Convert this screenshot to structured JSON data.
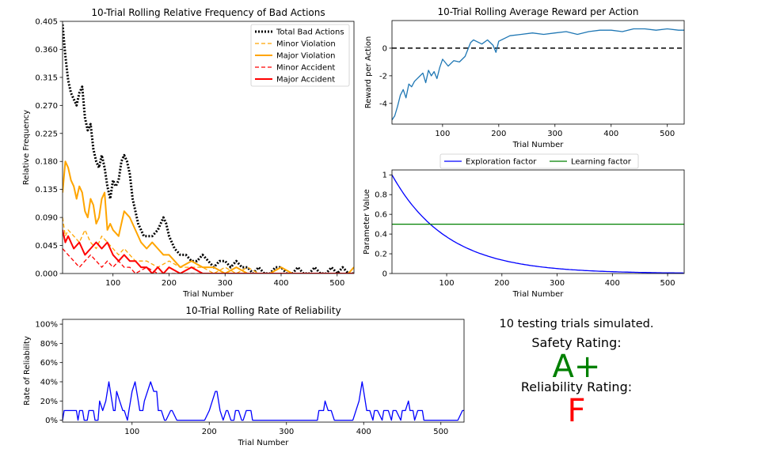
{
  "chart_data": [
    {
      "type": "line",
      "title": "10-Trial Rolling Relative Frequency of Bad Actions",
      "xlabel": "Trial Number",
      "ylabel": "Relative Frequency",
      "xlim": [
        10,
        530
      ],
      "ylim": [
        0,
        0.405
      ],
      "xticks": [
        100,
        200,
        300,
        400,
        500
      ],
      "yticks": [
        0.0,
        0.045,
        0.09,
        0.135,
        0.18,
        0.225,
        0.27,
        0.315,
        0.36,
        0.405
      ],
      "ytick_labels": [
        "0.000",
        "0.045",
        "0.090",
        "0.135",
        "0.180",
        "0.225",
        "0.270",
        "0.315",
        "0.360",
        "0.405"
      ],
      "legend_position": "upper right",
      "series": [
        {
          "name": "Total Bad Actions",
          "color": "#000000",
          "style": "dotted",
          "width": 3,
          "x": [
            10,
            15,
            20,
            25,
            30,
            35,
            40,
            45,
            50,
            55,
            60,
            65,
            70,
            75,
            80,
            85,
            90,
            95,
            100,
            105,
            110,
            115,
            120,
            125,
            130,
            135,
            140,
            145,
            150,
            155,
            160,
            170,
            180,
            190,
            195,
            200,
            210,
            220,
            230,
            240,
            250,
            260,
            270,
            280,
            290,
            300,
            310,
            320,
            330,
            340,
            350,
            360,
            370,
            380,
            390,
            400,
            410,
            420,
            430,
            440,
            450,
            460,
            470,
            480,
            490,
            500,
            510,
            520,
            530
          ],
          "y": [
            0.4,
            0.35,
            0.31,
            0.29,
            0.28,
            0.27,
            0.29,
            0.3,
            0.25,
            0.23,
            0.24,
            0.2,
            0.18,
            0.17,
            0.19,
            0.17,
            0.14,
            0.12,
            0.15,
            0.14,
            0.15,
            0.18,
            0.19,
            0.18,
            0.16,
            0.12,
            0.1,
            0.08,
            0.07,
            0.06,
            0.06,
            0.06,
            0.07,
            0.09,
            0.08,
            0.06,
            0.04,
            0.03,
            0.03,
            0.02,
            0.02,
            0.03,
            0.02,
            0.01,
            0.02,
            0.02,
            0.01,
            0.02,
            0.01,
            0.01,
            0.0,
            0.01,
            0.0,
            0.0,
            0.01,
            0.01,
            0.0,
            0.0,
            0.01,
            0.0,
            0.0,
            0.01,
            0.0,
            0.0,
            0.01,
            0.0,
            0.01,
            0.0,
            0.0
          ]
        },
        {
          "name": "Minor Violation",
          "color": "#ffa500",
          "style": "dashed",
          "width": 1.3,
          "x": [
            10,
            15,
            20,
            30,
            40,
            50,
            60,
            70,
            80,
            90,
            100,
            110,
            120,
            130,
            140,
            150,
            160,
            180,
            200,
            220,
            240,
            260,
            280,
            300,
            320,
            340,
            360,
            380,
            400,
            420,
            440,
            460,
            480,
            500,
            520,
            530
          ],
          "y": [
            0.09,
            0.06,
            0.07,
            0.06,
            0.05,
            0.07,
            0.05,
            0.04,
            0.06,
            0.05,
            0.04,
            0.03,
            0.04,
            0.03,
            0.02,
            0.02,
            0.02,
            0.01,
            0.02,
            0.01,
            0.01,
            0.01,
            0.0,
            0.01,
            0.0,
            0.01,
            0.0,
            0.0,
            0.01,
            0.0,
            0.0,
            0.0,
            0.0,
            0.0,
            0.0,
            0.0
          ]
        },
        {
          "name": "Major Violation",
          "color": "#ffa500",
          "style": "solid",
          "width": 2,
          "x": [
            10,
            15,
            20,
            25,
            30,
            35,
            40,
            45,
            50,
            55,
            60,
            65,
            70,
            75,
            80,
            85,
            90,
            95,
            100,
            110,
            120,
            130,
            140,
            150,
            160,
            170,
            180,
            190,
            200,
            210,
            220,
            240,
            260,
            280,
            300,
            320,
            340,
            360,
            380,
            400,
            420,
            440,
            460,
            480,
            500,
            520,
            530
          ],
          "y": [
            0.13,
            0.18,
            0.17,
            0.15,
            0.14,
            0.12,
            0.14,
            0.13,
            0.1,
            0.09,
            0.12,
            0.11,
            0.08,
            0.09,
            0.12,
            0.13,
            0.07,
            0.08,
            0.07,
            0.06,
            0.1,
            0.09,
            0.07,
            0.05,
            0.04,
            0.05,
            0.04,
            0.03,
            0.03,
            0.02,
            0.01,
            0.02,
            0.01,
            0.01,
            0.0,
            0.01,
            0.0,
            0.0,
            0.0,
            0.01,
            0.0,
            0.0,
            0.0,
            0.0,
            0.0,
            0.0,
            0.01
          ]
        },
        {
          "name": "Minor Accident",
          "color": "#ff0000",
          "style": "dashed",
          "width": 1.3,
          "x": [
            10,
            20,
            30,
            40,
            50,
            60,
            70,
            80,
            90,
            100,
            110,
            120,
            130,
            140,
            160,
            180,
            200,
            240,
            280,
            320,
            360,
            400,
            440,
            480,
            530
          ],
          "y": [
            0.04,
            0.03,
            0.02,
            0.01,
            0.02,
            0.03,
            0.02,
            0.01,
            0.02,
            0.01,
            0.02,
            0.01,
            0.01,
            0.0,
            0.01,
            0.0,
            0.0,
            0.0,
            0.0,
            0.0,
            0.0,
            0.0,
            0.0,
            0.0,
            0.0
          ]
        },
        {
          "name": "Major Accident",
          "color": "#ff0000",
          "style": "solid",
          "width": 2,
          "x": [
            10,
            15,
            20,
            25,
            30,
            40,
            50,
            60,
            70,
            80,
            90,
            100,
            110,
            120,
            130,
            140,
            150,
            160,
            170,
            180,
            190,
            200,
            220,
            240,
            260,
            280,
            300,
            340,
            380,
            420,
            460,
            500,
            530
          ],
          "y": [
            0.07,
            0.05,
            0.06,
            0.05,
            0.04,
            0.05,
            0.03,
            0.04,
            0.05,
            0.04,
            0.05,
            0.03,
            0.02,
            0.03,
            0.02,
            0.02,
            0.01,
            0.01,
            0.0,
            0.01,
            0.0,
            0.01,
            0.0,
            0.01,
            0.0,
            0.0,
            0.0,
            0.0,
            0.0,
            0.0,
            0.0,
            0.0,
            0.0
          ]
        }
      ]
    },
    {
      "type": "line",
      "title": "10-Trial Rolling Average Reward per Action",
      "xlabel": "Trial Number",
      "ylabel": "Reward per Action",
      "xlim": [
        10,
        530
      ],
      "ylim": [
        -5.5,
        2
      ],
      "xticks": [
        100,
        200,
        300,
        400,
        500
      ],
      "yticks": [
        -4,
        -2,
        0
      ],
      "reference_line": {
        "y": 0,
        "style": "dashed",
        "color": "#000000"
      },
      "series": [
        {
          "name": "",
          "color": "#1f77b4",
          "style": "solid",
          "width": 1.3,
          "x": [
            10,
            15,
            20,
            25,
            30,
            35,
            40,
            45,
            50,
            55,
            60,
            65,
            70,
            75,
            80,
            85,
            90,
            95,
            100,
            110,
            120,
            130,
            140,
            150,
            155,
            160,
            170,
            180,
            190,
            195,
            200,
            210,
            220,
            240,
            260,
            280,
            300,
            320,
            340,
            360,
            380,
            400,
            420,
            440,
            460,
            480,
            500,
            520,
            530
          ],
          "y": [
            -5.2,
            -4.9,
            -4.2,
            -3.4,
            -3.0,
            -3.6,
            -2.6,
            -2.8,
            -2.4,
            -2.2,
            -2.0,
            -1.8,
            -2.5,
            -1.6,
            -2.0,
            -1.7,
            -2.2,
            -1.4,
            -0.8,
            -1.3,
            -0.9,
            -1.0,
            -0.6,
            0.4,
            0.6,
            0.5,
            0.3,
            0.6,
            0.2,
            -0.3,
            0.5,
            0.7,
            0.9,
            1.0,
            1.1,
            1.0,
            1.1,
            1.2,
            1.0,
            1.2,
            1.3,
            1.3,
            1.2,
            1.4,
            1.4,
            1.3,
            1.4,
            1.3,
            1.3
          ]
        }
      ]
    },
    {
      "type": "line",
      "title": "",
      "xlabel": "Trial Number",
      "ylabel": "Parameter Value",
      "xlim": [
        1,
        530
      ],
      "ylim": [
        0,
        1.05
      ],
      "xticks": [
        100,
        200,
        300,
        400,
        500
      ],
      "yticks": [
        0.0,
        0.2,
        0.4,
        0.6,
        0.8,
        1.0
      ],
      "legend_position": "top (above axes)",
      "series": [
        {
          "name": "Exploration factor",
          "color": "#0000ff",
          "style": "solid",
          "width": 1.3,
          "function": "exp",
          "decay": 0.01,
          "start": 1.0
        },
        {
          "name": "Learning factor",
          "color": "#008000",
          "style": "solid",
          "width": 1.3,
          "x": [
            1,
            530
          ],
          "y": [
            0.5,
            0.5
          ]
        }
      ]
    },
    {
      "type": "line",
      "title": "10-Trial Rolling Rate of Reliability",
      "xlabel": "Trial Number",
      "ylabel": "Rate of Reliability",
      "xlim": [
        10,
        530
      ],
      "ylim": [
        -0.02,
        1.05
      ],
      "xticks": [
        100,
        200,
        300,
        400,
        500
      ],
      "yticks": [
        0,
        0.2,
        0.4,
        0.6,
        0.8,
        1.0
      ],
      "ytick_labels": [
        "0%",
        "20%",
        "40%",
        "60%",
        "80%",
        "100%"
      ],
      "series": [
        {
          "name": "",
          "color": "#0000ff",
          "style": "solid",
          "width": 1.3,
          "x": [
            10,
            12,
            14,
            20,
            22,
            28,
            30,
            32,
            36,
            38,
            42,
            44,
            50,
            52,
            56,
            58,
            62,
            66,
            70,
            72,
            76,
            78,
            80,
            84,
            88,
            90,
            94,
            96,
            100,
            104,
            108,
            110,
            114,
            116,
            120,
            124,
            128,
            132,
            134,
            138,
            142,
            144,
            150,
            152,
            158,
            160,
            170,
            172,
            182,
            184,
            194,
            200,
            204,
            208,
            210,
            214,
            218,
            222,
            224,
            228,
            232,
            234,
            238,
            242,
            244,
            248,
            254,
            256,
            260,
            268,
            270,
            294,
            296,
            300,
            308,
            310,
            314,
            318,
            320,
            340,
            342,
            348,
            350,
            354,
            358,
            362,
            364,
            368,
            376,
            378,
            382,
            386,
            390,
            394,
            398,
            400,
            404,
            408,
            412,
            414,
            418,
            424,
            426,
            432,
            436,
            438,
            442,
            448,
            450,
            454,
            458,
            460,
            464,
            466,
            470,
            476,
            478,
            482,
            486,
            488,
            520,
            522,
            528,
            530
          ],
          "y": [
            0,
            0.1,
            0.1,
            0.1,
            0.1,
            0.1,
            0,
            0.1,
            0.1,
            0,
            0,
            0.1,
            0.1,
            0,
            0,
            0.2,
            0.1,
            0.2,
            0.4,
            0.3,
            0.1,
            0.1,
            0.3,
            0.2,
            0.1,
            0.1,
            0.0,
            0.1,
            0.3,
            0.4,
            0.2,
            0.1,
            0.1,
            0.2,
            0.3,
            0.4,
            0.3,
            0.3,
            0.1,
            0.1,
            0.0,
            0.0,
            0.1,
            0.1,
            0.0,
            0.0,
            0.0,
            0.0,
            0.0,
            0.0,
            0.0,
            0.1,
            0.2,
            0.3,
            0.3,
            0.1,
            0.0,
            0.1,
            0.1,
            0.0,
            0.0,
            0.1,
            0.1,
            0.0,
            0.0,
            0.1,
            0.1,
            0.0,
            0.0,
            0.0,
            0.0,
            0.0,
            0.0,
            0.0,
            0.0,
            0.0,
            0.0,
            0.0,
            0.0,
            0.0,
            0.1,
            0.1,
            0.2,
            0.1,
            0.1,
            0.0,
            0.0,
            0.0,
            0.0,
            0.0,
            0.0,
            0.0,
            0.1,
            0.2,
            0.4,
            0.3,
            0.1,
            0.1,
            0.0,
            0.1,
            0.1,
            0.0,
            0.1,
            0.1,
            0.0,
            0.1,
            0.1,
            0.0,
            0.1,
            0.1,
            0.2,
            0.1,
            0.1,
            0.0,
            0.1,
            0.1,
            0.0,
            0.0,
            0.0,
            0.0,
            0.0,
            0.0,
            0.1,
            0.1
          ]
        }
      ]
    }
  ],
  "summary": {
    "trials_text": "10 testing trials simulated.",
    "safety_label": "Safety Rating:",
    "safety_grade": "A+",
    "safety_color": "#008000",
    "reliability_label": "Reliability Rating:",
    "reliability_grade": "F",
    "reliability_color": "#ff0000"
  }
}
